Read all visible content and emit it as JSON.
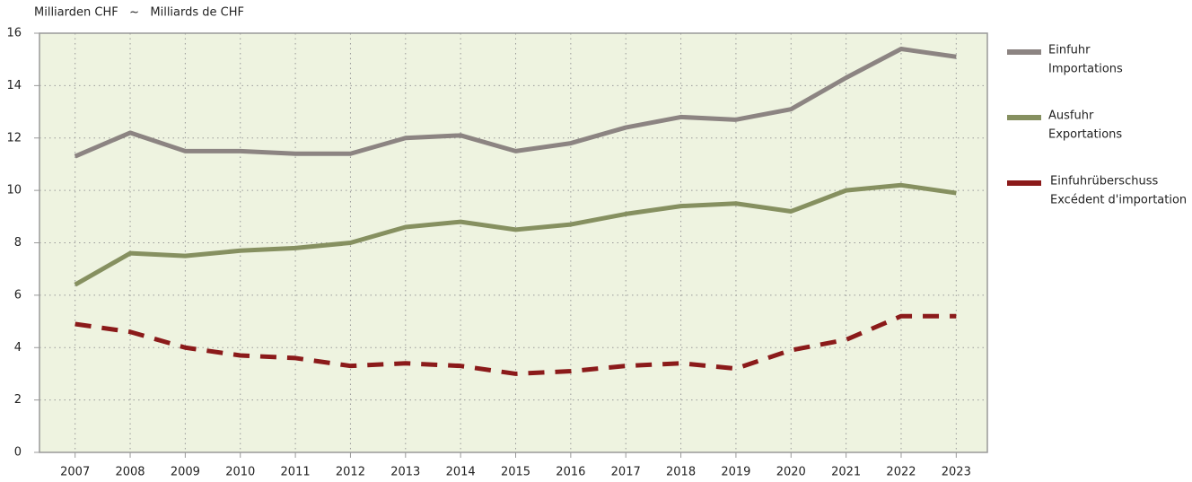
{
  "chart_data": {
    "type": "line",
    "y_label": "Milliarden CHF   ~   Milliards de CHF",
    "categories": [
      "2007",
      "2008",
      "2009",
      "2010",
      "2011",
      "2012",
      "2013",
      "2014",
      "2015",
      "2016",
      "2017",
      "2018",
      "2019",
      "2020",
      "2021",
      "2022",
      "2023"
    ],
    "series": [
      {
        "name": "Einfuhr",
        "name_fr": "Importations",
        "color": "#8c8482",
        "dash": false,
        "values": [
          11.3,
          12.2,
          11.5,
          11.5,
          11.4,
          11.4,
          12.0,
          12.1,
          11.5,
          11.8,
          12.4,
          12.8,
          12.7,
          13.1,
          14.3,
          15.4,
          15.1
        ]
      },
      {
        "name": "Ausfuhr",
        "name_fr": "Exportations",
        "color": "#869060",
        "dash": false,
        "values": [
          6.4,
          7.6,
          7.5,
          7.7,
          7.8,
          8.0,
          8.6,
          8.8,
          8.5,
          8.7,
          9.1,
          9.4,
          9.5,
          9.2,
          10.0,
          10.2,
          9.9
        ]
      },
      {
        "name": "Einfuhrüberschuss",
        "name_fr": "Excédent d'importation",
        "color": "#8b1a1a",
        "dash": true,
        "values": [
          4.9,
          4.6,
          4.0,
          3.7,
          3.6,
          3.3,
          3.4,
          3.3,
          3.0,
          3.1,
          3.3,
          3.4,
          3.2,
          3.9,
          4.3,
          5.2,
          5.2
        ]
      }
    ],
    "ylim": [
      0,
      16
    ],
    "yticks": [
      0,
      2,
      4,
      6,
      8,
      10,
      12,
      14,
      16
    ],
    "grid": true
  }
}
